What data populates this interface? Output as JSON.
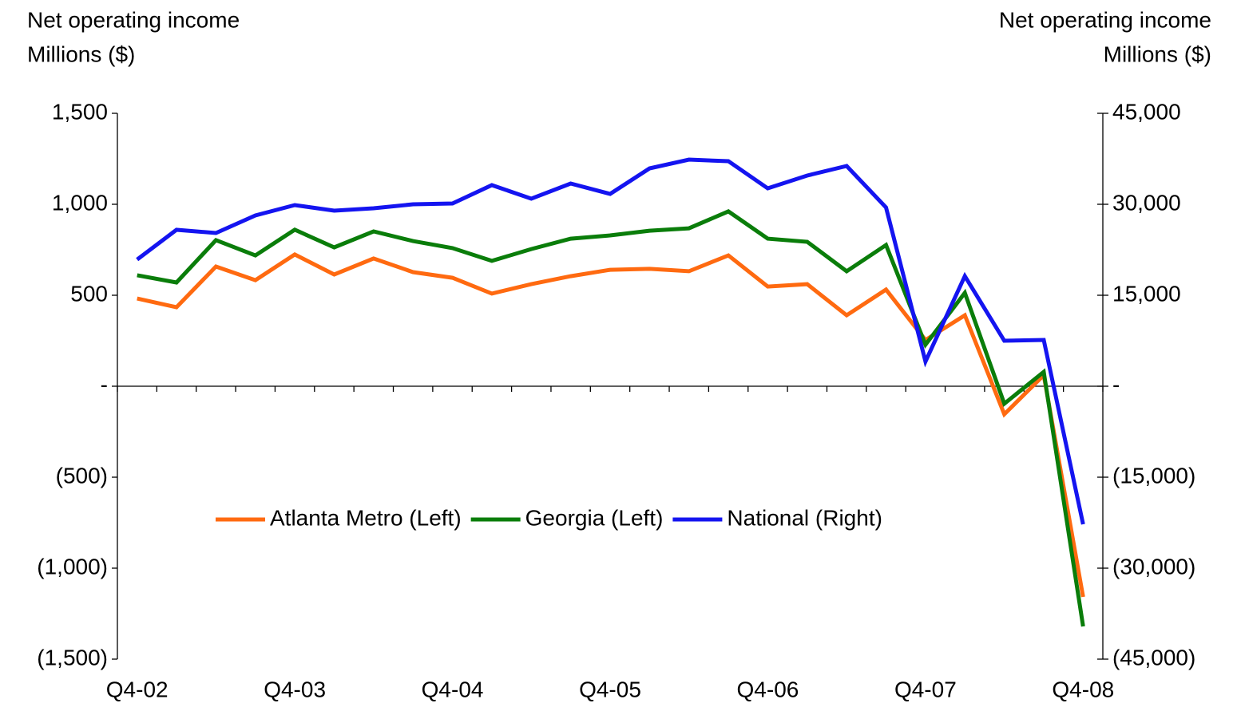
{
  "chart_data": {
    "type": "line",
    "ylabel": [
      "Net operating income",
      "Millions ($)"
    ],
    "y2label": [
      "Net operating income",
      "Millions ($)"
    ],
    "categories": [
      "Q4-02",
      null,
      null,
      null,
      "Q4-03",
      null,
      null,
      null,
      "Q4-04",
      null,
      null,
      null,
      "Q4-05",
      null,
      null,
      null,
      "Q4-06",
      null,
      null,
      null,
      "Q4-07",
      null,
      null,
      null,
      "Q4-08"
    ],
    "series": [
      {
        "name": "Atlanta Metro (Left)",
        "color": "#ff6a10",
        "axis": "y",
        "values": [
          482,
          434,
          658,
          583,
          724,
          614,
          702,
          627,
          596,
          509,
          561,
          605,
          640,
          645,
          632,
          719,
          548,
          561,
          390,
          531,
          254,
          390,
          -154,
          61,
          -1158
        ]
      },
      {
        "name": "Georgia (Left)",
        "color": "#0a7d0a",
        "axis": "y",
        "values": [
          610,
          570,
          803,
          719,
          860,
          763,
          851,
          798,
          759,
          689,
          754,
          811,
          829,
          855,
          868,
          961,
          811,
          794,
          632,
          776,
          228,
          513,
          -96,
          79,
          -1320
        ]
      },
      {
        "name": "National (Right)",
        "color": "#1414f0",
        "axis": "y2",
        "values": [
          20900,
          25790,
          25260,
          28160,
          29870,
          28950,
          29340,
          30000,
          30130,
          33160,
          30920,
          33420,
          31710,
          35920,
          37370,
          37110,
          32630,
          34740,
          36320,
          29470,
          4080,
          18160,
          7500,
          7630,
          -22760
        ]
      }
    ],
    "ylim": [
      -1500,
      1500
    ],
    "yticks": [
      {
        "value": -1500,
        "label": "(1,500)"
      },
      {
        "value": -1000,
        "label": "(1,000)"
      },
      {
        "value": -500,
        "label": "(500)"
      },
      {
        "value": 0,
        "label": "-"
      },
      500,
      {
        "value": 1000,
        "label": "1,000"
      },
      {
        "value": 1500,
        "label": "1,500"
      }
    ],
    "y2lim": [
      -45000,
      45000
    ],
    "y2ticks": [
      {
        "value": -45000,
        "label": "(45,000)"
      },
      {
        "value": -30000,
        "label": "(30,000)"
      },
      {
        "value": -15000,
        "label": "(15,000)"
      },
      {
        "value": 0,
        "label": "-"
      },
      {
        "value": 15000,
        "label": "15,000"
      },
      {
        "value": 30000,
        "label": "30,000"
      },
      {
        "value": 45000,
        "label": "45,000"
      }
    ],
    "grid": false
  }
}
